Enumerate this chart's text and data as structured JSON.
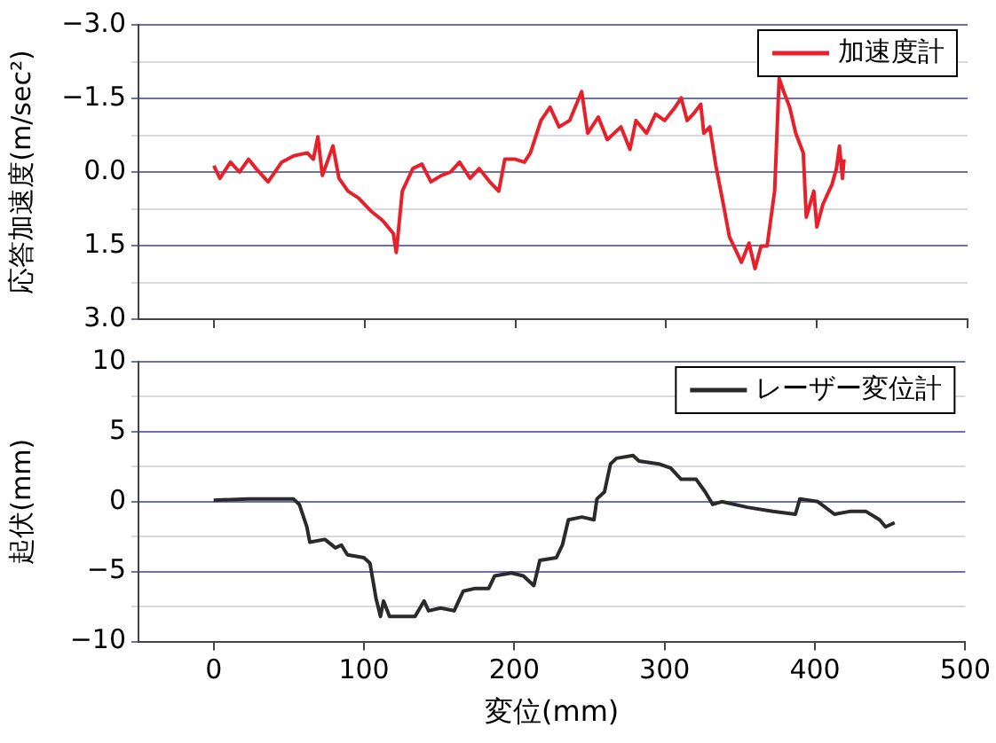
{
  "chart_data": [
    {
      "type": "line",
      "ylabel": "応答加速度(m/sec²)",
      "xlim": [
        -50,
        500
      ],
      "xticks": [
        0,
        100,
        200,
        300,
        400,
        500
      ],
      "ylim": [
        3,
        -3
      ],
      "yticks": [
        {
          "value": -3,
          "label": "−3.0"
        },
        {
          "value": -2.25,
          "label": null
        },
        {
          "value": -1.5,
          "label": "−1.5"
        },
        {
          "value": -0.75,
          "label": null
        },
        {
          "value": 0,
          "label": "0.0"
        },
        {
          "value": 0.75,
          "label": null
        },
        {
          "value": 1.5,
          "label": "1.5"
        },
        {
          "value": 2.25,
          "label": null
        },
        {
          "value": 3,
          "label": "3.0"
        }
      ],
      "tick_labels": "y",
      "grid": "y",
      "legend": "top right",
      "marker": "none",
      "line_style": "solid",
      "series": [
        {
          "name": "加速度計",
          "color": "#e8202a",
          "x": [
            0,
            4,
            11,
            17,
            23,
            28,
            36,
            45,
            53,
            62,
            66,
            69,
            72,
            79,
            83,
            89,
            96,
            104,
            112,
            119,
            121,
            125,
            132,
            138,
            144,
            151,
            157,
            163,
            170,
            176,
            183,
            189,
            193,
            200,
            206,
            210,
            217,
            223,
            229,
            236,
            244,
            248,
            255,
            261,
            270,
            276,
            280,
            287,
            293,
            299,
            306,
            310,
            314,
            318,
            323,
            325,
            329,
            333,
            338,
            342,
            346,
            350,
            355,
            359,
            363,
            367,
            372,
            375,
            378,
            382,
            386,
            391,
            393,
            398,
            400,
            404,
            408,
            410,
            413,
            415,
            417,
            418
          ],
          "values": [
            -0.13,
            0.13,
            -0.2,
            0,
            -0.26,
            -0.07,
            0.2,
            -0.2,
            -0.33,
            -0.39,
            -0.26,
            -0.72,
            0.07,
            -0.53,
            0.13,
            0.39,
            0.53,
            0.79,
            0.99,
            1.25,
            1.64,
            0.39,
            -0.07,
            -0.16,
            0.2,
            0.07,
            0,
            -0.2,
            0.13,
            -0.07,
            0.2,
            0.39,
            -0.26,
            -0.26,
            -0.2,
            -0.39,
            -1.05,
            -1.32,
            -0.92,
            -1.05,
            -1.64,
            -0.79,
            -1.12,
            -0.66,
            -0.92,
            -0.46,
            -1.05,
            -0.79,
            -1.18,
            -1.05,
            -1.32,
            -1.51,
            -1.05,
            -1.18,
            -1.38,
            -0.79,
            -0.92,
            -0.13,
            0.66,
            1.32,
            1.58,
            1.84,
            1.45,
            1.97,
            1.51,
            1.51,
            0.39,
            -1.91,
            -1.64,
            -1.32,
            -0.79,
            -0.39,
            0.92,
            0.39,
            1.12,
            0.66,
            0.39,
            0.26,
            -0.07,
            -0.53,
            0.13,
            -0.26
          ]
        }
      ]
    },
    {
      "type": "line",
      "xlabel": "変位(mm)",
      "ylabel": "起伏(mm)",
      "xlim": [
        -50,
        500
      ],
      "xticks": [
        0,
        100,
        200,
        300,
        400,
        500
      ],
      "ylim": [
        -10,
        10
      ],
      "yticks": [
        {
          "value": -10,
          "label": "−10"
        },
        {
          "value": -7.5,
          "label": null
        },
        {
          "value": -5,
          "label": "−5"
        },
        {
          "value": -2.5,
          "label": null
        },
        0,
        {
          "value": 2.5,
          "label": null
        },
        5,
        {
          "value": 7.5,
          "label": null
        },
        10
      ],
      "grid": "y",
      "legend": "top right",
      "marker": "none",
      "line_style": "solid",
      "series": [
        {
          "name": "レーザー変位計",
          "color": "#2a2a2a",
          "x": [
            0,
            23,
            53,
            57,
            62,
            64,
            74,
            81,
            85,
            89,
            100,
            104,
            108,
            111,
            113,
            117,
            126,
            134,
            140,
            143,
            151,
            160,
            166,
            174,
            183,
            187,
            198,
            206,
            213,
            217,
            228,
            232,
            236,
            245,
            253,
            255,
            260,
            264,
            268,
            279,
            283,
            296,
            304,
            311,
            321,
            327,
            332,
            338,
            355,
            372,
            387,
            390,
            402,
            413,
            423,
            434,
            443,
            447,
            453
          ],
          "values": [
            0.1,
            0.2,
            0.2,
            -0.2,
            -1.8,
            -2.9,
            -2.7,
            -3.3,
            -3.1,
            -3.8,
            -4.0,
            -4.4,
            -6.9,
            -8.2,
            -7.1,
            -8.2,
            -8.2,
            -8.2,
            -7.1,
            -7.8,
            -7.6,
            -7.8,
            -6.4,
            -6.2,
            -6.2,
            -5.3,
            -5.1,
            -5.3,
            -6.0,
            -4.2,
            -4.0,
            -3.1,
            -1.3,
            -1.1,
            -1.3,
            0.2,
            0.7,
            2.7,
            3.1,
            3.3,
            2.9,
            2.7,
            2.4,
            1.6,
            1.6,
            0.7,
            -0.2,
            0,
            -0.4,
            -0.7,
            -0.9,
            0.2,
            0,
            -0.9,
            -0.7,
            -0.7,
            -1.3,
            -1.8,
            -1.5
          ]
        }
      ]
    }
  ]
}
